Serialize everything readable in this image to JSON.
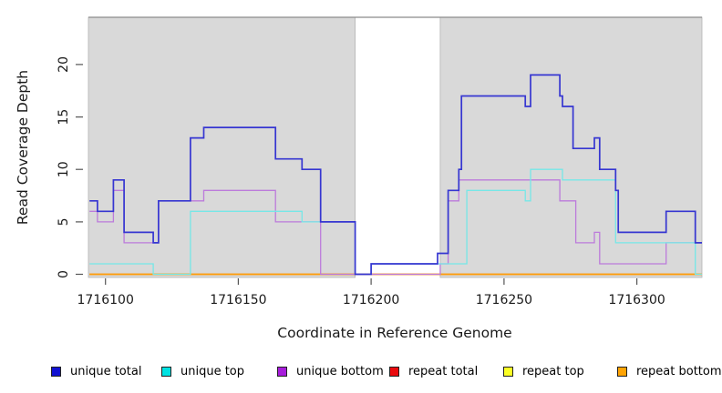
{
  "chart_data": {
    "type": "line",
    "subtype": "step-coverage",
    "title": "",
    "xlabel": "Coordinate in Reference Genome",
    "ylabel": "Read Coverage Depth",
    "x_ticks": [
      1716100,
      1716150,
      1716200,
      1716250,
      1716300
    ],
    "y_ticks": [
      0,
      5,
      10,
      15,
      20
    ],
    "xlim": [
      1716093.6,
      1716324.5
    ],
    "ylim": [
      -0.3,
      24.5
    ],
    "grid": false,
    "legend_position": "bottom",
    "shade_color": "#d9d9d9",
    "shaded_regions": [
      [
        1716093.6,
        1716194
      ],
      [
        1716226,
        1716324.5
      ]
    ],
    "series": [
      {
        "name": "unique total",
        "color": "#3636d1",
        "legend_color": "#1212d2",
        "lw": 1.7,
        "steps": [
          [
            1716094,
            7
          ],
          [
            1716097,
            6
          ],
          [
            1716103,
            9
          ],
          [
            1716107,
            4
          ],
          [
            1716118,
            3
          ],
          [
            1716120,
            7
          ],
          [
            1716132,
            13
          ],
          [
            1716137,
            14
          ],
          [
            1716164,
            11
          ],
          [
            1716174,
            10
          ],
          [
            1716181,
            5
          ],
          [
            1716194,
            0
          ],
          [
            1716200,
            1
          ],
          [
            1716225,
            2
          ],
          [
            1716229,
            8
          ],
          [
            1716233,
            10
          ],
          [
            1716234,
            17
          ],
          [
            1716258,
            16
          ],
          [
            1716260,
            19
          ],
          [
            1716271,
            17
          ],
          [
            1716272,
            16
          ],
          [
            1716276,
            12
          ],
          [
            1716284,
            13
          ],
          [
            1716286,
            10
          ],
          [
            1716292,
            8
          ],
          [
            1716293,
            4
          ],
          [
            1716311,
            6
          ],
          [
            1716322,
            3
          ]
        ]
      },
      {
        "name": "unique top",
        "color": "#76e7e7",
        "legend_color": "#00e2e2",
        "lw": 1.3,
        "steps": [
          [
            1716094,
            1
          ],
          [
            1716118,
            0
          ],
          [
            1716132,
            6
          ],
          [
            1716174,
            5
          ],
          [
            1716194,
            0
          ],
          [
            1716200,
            1
          ],
          [
            1716236,
            8
          ],
          [
            1716258,
            7
          ],
          [
            1716260,
            10
          ],
          [
            1716272,
            9
          ],
          [
            1716292,
            3
          ],
          [
            1716322,
            0
          ]
        ]
      },
      {
        "name": "unique bottom",
        "color": "#bc7bdb",
        "legend_color": "#a71ddb",
        "lw": 1.3,
        "steps": [
          [
            1716094,
            6
          ],
          [
            1716097,
            5
          ],
          [
            1716103,
            8
          ],
          [
            1716107,
            3
          ],
          [
            1716120,
            7
          ],
          [
            1716137,
            8
          ],
          [
            1716164,
            5
          ],
          [
            1716181,
            0
          ],
          [
            1716226,
            1
          ],
          [
            1716229,
            7
          ],
          [
            1716233,
            9
          ],
          [
            1716271,
            7
          ],
          [
            1716277,
            3
          ],
          [
            1716284,
            4
          ],
          [
            1716286,
            1
          ],
          [
            1716311,
            3
          ]
        ]
      },
      {
        "name": "repeat total",
        "color": "#dd1111",
        "legend_color": "#ea0b0e",
        "lw": 1.2,
        "steps": [
          [
            1716094,
            0
          ]
        ]
      },
      {
        "name": "repeat top",
        "color": "#ffee00",
        "legend_color": "#fbff24",
        "lw": 1.2,
        "steps": [
          [
            1716094,
            0
          ]
        ]
      },
      {
        "name": "repeat bottom",
        "color": "#ff9d0a",
        "legend_color": "#ffa405",
        "lw": 1.7,
        "steps": [
          [
            1716094,
            0
          ]
        ]
      }
    ],
    "draw_order": [
      3,
      4,
      5,
      2,
      1,
      0
    ]
  }
}
